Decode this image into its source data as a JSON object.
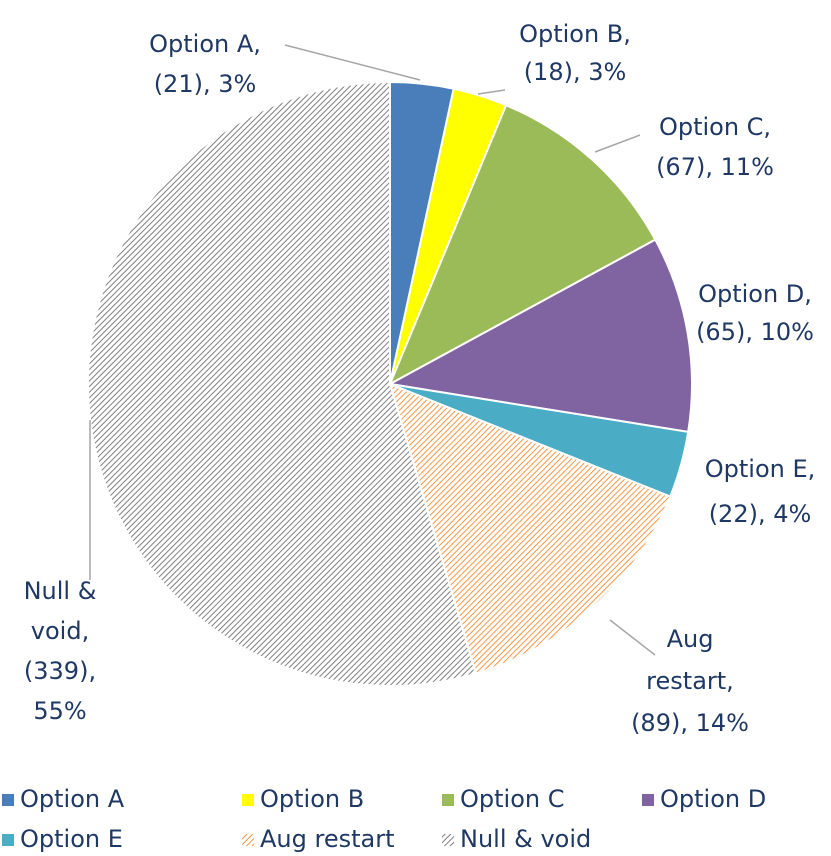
{
  "chart_data": {
    "type": "pie",
    "categories": [
      "Option A",
      "Option B",
      "Option C",
      "Option D",
      "Option E",
      "Aug restart",
      "Null & void"
    ],
    "values": [
      21,
      18,
      67,
      65,
      22,
      89,
      339
    ],
    "value_labels": [
      [
        "Option A,",
        "(21), 3%"
      ],
      [
        "Option B,",
        "(18), 3%"
      ],
      [
        "Option C,",
        "(67), 11%"
      ],
      [
        "Option D,",
        "(65), 10%"
      ],
      [
        "Option E,",
        "(22), 4%"
      ],
      [
        "Aug",
        "restart,",
        "(89), 14%"
      ],
      [
        "Null &",
        "void,",
        "(339),",
        "55%"
      ]
    ],
    "colors": [
      "#4a7ebb",
      "#ffff00",
      "#9bbb59",
      "#8064a2",
      "#4bacc6",
      "#f79646",
      "#7f7f7f"
    ],
    "patterns": [
      "solid",
      "solid",
      "solid",
      "solid",
      "solid",
      "hatch",
      "hatch"
    ],
    "legend": "bottom"
  }
}
